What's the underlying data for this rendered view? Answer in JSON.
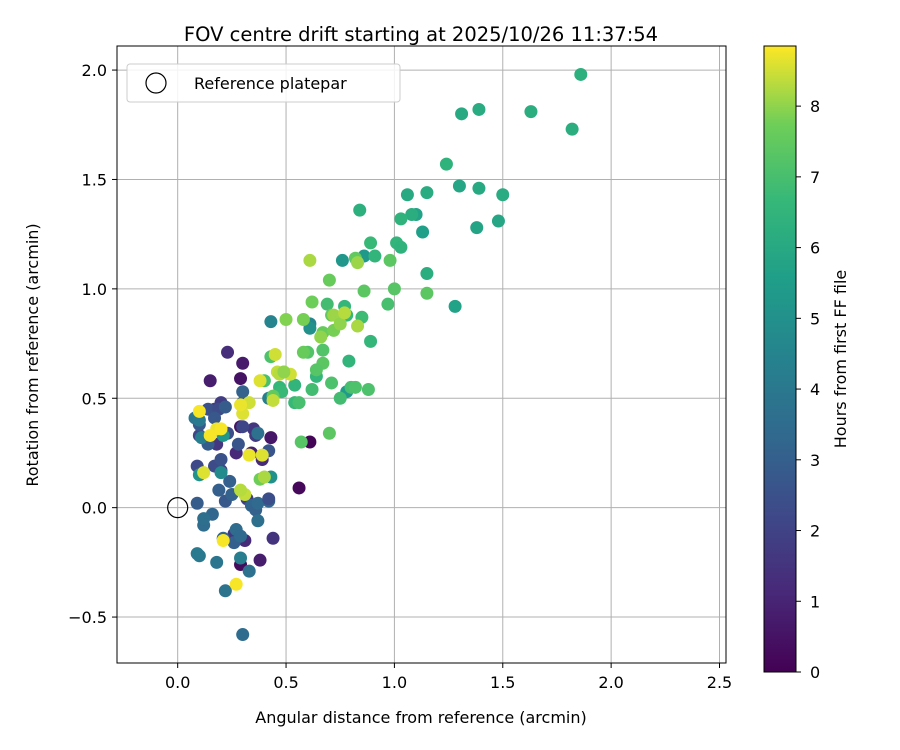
{
  "chart_data": {
    "type": "scatter",
    "title": "FOV centre drift starting at 2025/10/26 11:37:54",
    "xlabel": "Angular distance from reference (arcmin)",
    "ylabel": "Rotation from reference (arcmin)",
    "xlim": [
      -0.28,
      2.53
    ],
    "ylim": [
      -0.71,
      2.11
    ],
    "xticks": [
      0.0,
      0.5,
      1.0,
      1.5,
      2.0,
      2.5
    ],
    "xtick_labels": [
      "0.0",
      "0.5",
      "1.0",
      "1.5",
      "2.0",
      "2.5"
    ],
    "yticks": [
      -0.5,
      0.0,
      0.5,
      1.0,
      1.5,
      2.0
    ],
    "ytick_labels": [
      "−0.5",
      "0.0",
      "0.5",
      "1.0",
      "1.5",
      "2.0"
    ],
    "grid": true,
    "legend": {
      "position": "top-left",
      "entries": [
        "Reference platepar"
      ]
    },
    "reference_point": {
      "x": 0.0,
      "y": 0.0,
      "label": "Reference platepar"
    },
    "colorbar": {
      "label": "Hours from first FF file",
      "range": [
        0,
        8.85
      ],
      "ticks": [
        0,
        1,
        2,
        3,
        4,
        5,
        6,
        7,
        8
      ],
      "tick_labels": [
        "0",
        "1",
        "2",
        "3",
        "4",
        "5",
        "6",
        "7",
        "8"
      ],
      "colormap": "viridis"
    },
    "points": [
      {
        "x": 0.56,
        "y": 0.09,
        "h": 0.2
      },
      {
        "x": 0.61,
        "y": 0.3,
        "h": 0.1
      },
      {
        "x": 0.43,
        "y": 0.32,
        "h": 0.6
      },
      {
        "x": 0.29,
        "y": 0.59,
        "h": 0.5
      },
      {
        "x": 0.3,
        "y": 0.66,
        "h": 0.7
      },
      {
        "x": 0.15,
        "y": 0.58,
        "h": 0.8
      },
      {
        "x": 0.38,
        "y": -0.24,
        "h": 0.8
      },
      {
        "x": 0.29,
        "y": -0.26,
        "h": 0.3
      },
      {
        "x": 0.29,
        "y": 0.37,
        "h": 0.5
      },
      {
        "x": 0.34,
        "y": 0.25,
        "h": 0.9
      },
      {
        "x": 0.23,
        "y": 0.71,
        "h": 1.3
      },
      {
        "x": 0.27,
        "y": 0.25,
        "h": 1.1
      },
      {
        "x": 0.31,
        "y": -0.15,
        "h": 1.2
      },
      {
        "x": 0.39,
        "y": 0.22,
        "h": 1.2
      },
      {
        "x": 0.26,
        "y": -0.12,
        "h": 1.6
      },
      {
        "x": 0.44,
        "y": -0.14,
        "h": 1.5
      },
      {
        "x": 0.17,
        "y": 0.45,
        "h": 1.8
      },
      {
        "x": 0.18,
        "y": 0.29,
        "h": 1.6
      },
      {
        "x": 0.2,
        "y": 0.48,
        "h": 1.8
      },
      {
        "x": 0.36,
        "y": 0.33,
        "h": 1.7
      },
      {
        "x": 0.35,
        "y": 0.36,
        "h": 1.6
      },
      {
        "x": 0.32,
        "y": 0.04,
        "h": 1.9
      },
      {
        "x": 0.1,
        "y": 0.33,
        "h": 2.1
      },
      {
        "x": 0.09,
        "y": 0.19,
        "h": 2.2
      },
      {
        "x": 0.2,
        "y": 0.17,
        "h": 2.0
      },
      {
        "x": 0.23,
        "y": 0.34,
        "h": 2.4
      },
      {
        "x": 0.3,
        "y": 0.37,
        "h": 2.1
      },
      {
        "x": 0.17,
        "y": 0.19,
        "h": 2.3
      },
      {
        "x": 0.14,
        "y": 0.45,
        "h": 2.5
      },
      {
        "x": 0.19,
        "y": 0.45,
        "h": 2.3
      },
      {
        "x": 0.2,
        "y": 0.22,
        "h": 2.5
      },
      {
        "x": 0.3,
        "y": 0.48,
        "h": 2.7
      },
      {
        "x": 0.42,
        "y": 0.26,
        "h": 2.6
      },
      {
        "x": 0.28,
        "y": 0.29,
        "h": 2.6
      },
      {
        "x": 0.1,
        "y": 0.38,
        "h": 2.8
      },
      {
        "x": 0.14,
        "y": 0.29,
        "h": 2.9
      },
      {
        "x": 0.24,
        "y": 0.12,
        "h": 3.0
      },
      {
        "x": 0.09,
        "y": 0.02,
        "h": 2.9
      },
      {
        "x": 0.19,
        "y": 0.08,
        "h": 3.0
      },
      {
        "x": 0.22,
        "y": 0.03,
        "h": 2.7
      },
      {
        "x": 0.25,
        "y": 0.06,
        "h": 3.1
      },
      {
        "x": 0.34,
        "y": 0.01,
        "h": 3.2
      },
      {
        "x": 0.36,
        "y": -0.01,
        "h": 3.1
      },
      {
        "x": 0.37,
        "y": 0.02,
        "h": 3.4
      },
      {
        "x": 0.42,
        "y": 0.03,
        "h": 3.3
      },
      {
        "x": 0.42,
        "y": 0.04,
        "h": 2.4
      },
      {
        "x": 0.16,
        "y": -0.03,
        "h": 3.3
      },
      {
        "x": 0.12,
        "y": -0.08,
        "h": 3.5
      },
      {
        "x": 0.12,
        "y": -0.05,
        "h": 3.6
      },
      {
        "x": 0.27,
        "y": -0.1,
        "h": 3.5
      },
      {
        "x": 0.21,
        "y": -0.14,
        "h": 3.2
      },
      {
        "x": 0.26,
        "y": -0.16,
        "h": 3.0
      },
      {
        "x": 0.37,
        "y": -0.06,
        "h": 3.6
      },
      {
        "x": 0.33,
        "y": -0.29,
        "h": 3.7
      },
      {
        "x": 0.22,
        "y": -0.38,
        "h": 3.8
      },
      {
        "x": 0.3,
        "y": -0.58,
        "h": 3.5
      },
      {
        "x": 0.18,
        "y": -0.25,
        "h": 3.9
      },
      {
        "x": 0.1,
        "y": -0.22,
        "h": 4.0
      },
      {
        "x": 0.09,
        "y": -0.21,
        "h": 4.1
      },
      {
        "x": 0.29,
        "y": -0.23,
        "h": 4.2
      },
      {
        "x": 0.29,
        "y": -0.13,
        "h": 3.4
      },
      {
        "x": 0.37,
        "y": 0.34,
        "h": 3.7
      },
      {
        "x": 0.3,
        "y": 0.53,
        "h": 3.1
      },
      {
        "x": 0.22,
        "y": 0.46,
        "h": 2.9
      },
      {
        "x": 0.17,
        "y": 0.41,
        "h": 2.7
      },
      {
        "x": 0.08,
        "y": 0.41,
        "h": 3.9
      },
      {
        "x": 0.1,
        "y": 0.4,
        "h": 4.1
      },
      {
        "x": 0.11,
        "y": 0.32,
        "h": 4.2
      },
      {
        "x": 0.21,
        "y": 0.33,
        "h": 5.2
      },
      {
        "x": 0.43,
        "y": 0.85,
        "h": 4.5
      },
      {
        "x": 0.42,
        "y": 0.5,
        "h": 4.3
      },
      {
        "x": 0.43,
        "y": 0.14,
        "h": 5.0
      },
      {
        "x": 0.1,
        "y": 0.15,
        "h": 5.1
      },
      {
        "x": 0.2,
        "y": 0.16,
        "h": 4.8
      },
      {
        "x": 0.61,
        "y": 0.84,
        "h": 4.6
      },
      {
        "x": 0.61,
        "y": 0.82,
        "h": 5.0
      },
      {
        "x": 0.76,
        "y": 1.13,
        "h": 5.2
      },
      {
        "x": 0.86,
        "y": 1.15,
        "h": 5.3
      },
      {
        "x": 0.78,
        "y": 0.53,
        "h": 5.4
      },
      {
        "x": 1.1,
        "y": 1.34,
        "h": 5.7
      },
      {
        "x": 1.13,
        "y": 1.26,
        "h": 5.6
      },
      {
        "x": 1.38,
        "y": 1.28,
        "h": 5.8
      },
      {
        "x": 1.28,
        "y": 0.92,
        "h": 5.7
      },
      {
        "x": 1.48,
        "y": 1.31,
        "h": 5.9
      },
      {
        "x": 1.3,
        "y": 1.47,
        "h": 5.9
      },
      {
        "x": 1.31,
        "y": 1.8,
        "h": 6.0
      },
      {
        "x": 1.39,
        "y": 1.82,
        "h": 6.1
      },
      {
        "x": 1.63,
        "y": 1.81,
        "h": 6.2
      },
      {
        "x": 1.82,
        "y": 1.73,
        "h": 6.2
      },
      {
        "x": 1.86,
        "y": 1.98,
        "h": 6.3
      },
      {
        "x": 1.5,
        "y": 1.43,
        "h": 6.1
      },
      {
        "x": 1.39,
        "y": 1.46,
        "h": 6.0
      },
      {
        "x": 1.15,
        "y": 1.44,
        "h": 6.1
      },
      {
        "x": 1.06,
        "y": 1.43,
        "h": 6.0
      },
      {
        "x": 1.08,
        "y": 1.34,
        "h": 6.2
      },
      {
        "x": 1.03,
        "y": 1.32,
        "h": 6.4
      },
      {
        "x": 1.15,
        "y": 1.07,
        "h": 6.2
      },
      {
        "x": 0.84,
        "y": 1.36,
        "h": 6.3
      },
      {
        "x": 1.24,
        "y": 1.57,
        "h": 6.4
      },
      {
        "x": 1.01,
        "y": 1.21,
        "h": 6.5
      },
      {
        "x": 1.03,
        "y": 1.19,
        "h": 6.4
      },
      {
        "x": 0.91,
        "y": 1.15,
        "h": 6.5
      },
      {
        "x": 0.89,
        "y": 1.21,
        "h": 6.7
      },
      {
        "x": 0.77,
        "y": 0.92,
        "h": 6.6
      },
      {
        "x": 0.78,
        "y": 0.88,
        "h": 6.7
      },
      {
        "x": 0.85,
        "y": 0.87,
        "h": 6.8
      },
      {
        "x": 0.89,
        "y": 0.76,
        "h": 6.6
      },
      {
        "x": 0.79,
        "y": 0.67,
        "h": 6.5
      },
      {
        "x": 0.69,
        "y": 0.93,
        "h": 6.9
      },
      {
        "x": 0.62,
        "y": 0.54,
        "h": 6.9
      },
      {
        "x": 0.64,
        "y": 0.6,
        "h": 6.6
      },
      {
        "x": 0.54,
        "y": 0.56,
        "h": 6.5
      },
      {
        "x": 0.47,
        "y": 0.55,
        "h": 6.6
      },
      {
        "x": 0.48,
        "y": 0.53,
        "h": 6.7
      },
      {
        "x": 0.54,
        "y": 0.48,
        "h": 6.7
      },
      {
        "x": 0.56,
        "y": 0.48,
        "h": 7.0
      },
      {
        "x": 0.43,
        "y": 0.69,
        "h": 7.1
      },
      {
        "x": 0.4,
        "y": 0.58,
        "h": 7.0
      },
      {
        "x": 0.6,
        "y": 0.71,
        "h": 7.2
      },
      {
        "x": 0.67,
        "y": 0.72,
        "h": 7.2
      },
      {
        "x": 0.71,
        "y": 0.57,
        "h": 7.1
      },
      {
        "x": 0.75,
        "y": 0.5,
        "h": 6.9
      },
      {
        "x": 0.8,
        "y": 0.55,
        "h": 7.0
      },
      {
        "x": 0.82,
        "y": 0.55,
        "h": 7.1
      },
      {
        "x": 0.88,
        "y": 0.54,
        "h": 7.1
      },
      {
        "x": 0.97,
        "y": 0.93,
        "h": 7.0
      },
      {
        "x": 1.0,
        "y": 1.0,
        "h": 7.3
      },
      {
        "x": 1.15,
        "y": 0.98,
        "h": 7.4
      },
      {
        "x": 0.98,
        "y": 1.13,
        "h": 7.4
      },
      {
        "x": 0.82,
        "y": 1.14,
        "h": 7.5
      },
      {
        "x": 0.86,
        "y": 0.99,
        "h": 7.4
      },
      {
        "x": 0.7,
        "y": 1.04,
        "h": 7.6
      },
      {
        "x": 0.71,
        "y": 0.88,
        "h": 7.5
      },
      {
        "x": 0.62,
        "y": 0.94,
        "h": 7.7
      },
      {
        "x": 0.67,
        "y": 0.8,
        "h": 7.6
      },
      {
        "x": 0.72,
        "y": 0.81,
        "h": 7.8
      },
      {
        "x": 0.67,
        "y": 0.66,
        "h": 7.4
      },
      {
        "x": 0.64,
        "y": 0.63,
        "h": 7.3
      },
      {
        "x": 0.57,
        "y": 0.3,
        "h": 7.3
      },
      {
        "x": 0.7,
        "y": 0.34,
        "h": 7.4
      },
      {
        "x": 0.44,
        "y": 0.51,
        "h": 7.5
      },
      {
        "x": 0.58,
        "y": 0.71,
        "h": 7.6
      },
      {
        "x": 0.38,
        "y": 0.13,
        "h": 7.7
      },
      {
        "x": 0.5,
        "y": 0.86,
        "h": 7.9
      },
      {
        "x": 0.58,
        "y": 0.86,
        "h": 7.8
      },
      {
        "x": 0.66,
        "y": 0.78,
        "h": 8.0
      },
      {
        "x": 0.72,
        "y": 0.88,
        "h": 8.1
      },
      {
        "x": 0.75,
        "y": 0.84,
        "h": 8.0
      },
      {
        "x": 0.83,
        "y": 0.83,
        "h": 8.2
      },
      {
        "x": 0.83,
        "y": 1.12,
        "h": 8.1
      },
      {
        "x": 0.61,
        "y": 1.13,
        "h": 8.2
      },
      {
        "x": 0.46,
        "y": 0.62,
        "h": 8.4
      },
      {
        "x": 0.49,
        "y": 0.62,
        "h": 8.3
      },
      {
        "x": 0.52,
        "y": 0.61,
        "h": 8.5
      },
      {
        "x": 0.47,
        "y": 0.61,
        "h": 8.3
      },
      {
        "x": 0.38,
        "y": 0.58,
        "h": 8.6
      },
      {
        "x": 0.45,
        "y": 0.7,
        "h": 8.5
      },
      {
        "x": 0.33,
        "y": 0.48,
        "h": 8.5
      },
      {
        "x": 0.3,
        "y": 0.43,
        "h": 8.6
      },
      {
        "x": 0.29,
        "y": 0.47,
        "h": 8.7
      },
      {
        "x": 0.18,
        "y": 0.36,
        "h": 8.7
      },
      {
        "x": 0.15,
        "y": 0.33,
        "h": 8.8
      },
      {
        "x": 0.2,
        "y": 0.36,
        "h": 8.8
      },
      {
        "x": 0.33,
        "y": 0.24,
        "h": 8.7
      },
      {
        "x": 0.39,
        "y": 0.24,
        "h": 8.6
      },
      {
        "x": 0.31,
        "y": 0.06,
        "h": 8.4
      },
      {
        "x": 0.29,
        "y": 0.08,
        "h": 8.3
      },
      {
        "x": 0.12,
        "y": 0.16,
        "h": 8.6
      },
      {
        "x": 0.1,
        "y": 0.44,
        "h": 8.8
      },
      {
        "x": 0.21,
        "y": -0.15,
        "h": 8.8
      },
      {
        "x": 0.27,
        "y": -0.35,
        "h": 8.8
      },
      {
        "x": 0.44,
        "y": 0.49,
        "h": 8.4
      },
      {
        "x": 0.4,
        "y": 0.14,
        "h": 8.2
      },
      {
        "x": 0.49,
        "y": 0.62,
        "h": 8.0
      },
      {
        "x": 0.77,
        "y": 0.89,
        "h": 8.3
      }
    ]
  }
}
